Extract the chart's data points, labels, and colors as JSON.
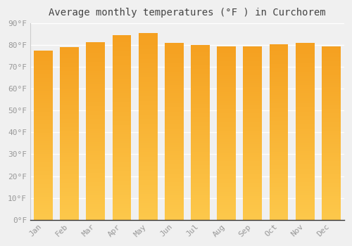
{
  "title": "Average monthly temperatures (°F ) in Curchorem",
  "months": [
    "Jan",
    "Feb",
    "Mar",
    "Apr",
    "May",
    "Jun",
    "Jul",
    "Aug",
    "Sep",
    "Oct",
    "Nov",
    "Dec"
  ],
  "values": [
    77.5,
    79.0,
    81.5,
    84.5,
    85.5,
    81.0,
    80.0,
    79.5,
    79.5,
    80.5,
    81.0,
    79.5
  ],
  "bar_color_top": "#F5A623",
  "bar_color_bottom": "#FDC84B",
  "ylim": [
    0,
    90
  ],
  "ytick_step": 10,
  "background_color": "#f0f0f0",
  "grid_color": "#ffffff",
  "title_fontsize": 10,
  "tick_fontsize": 8,
  "bar_width": 0.72
}
